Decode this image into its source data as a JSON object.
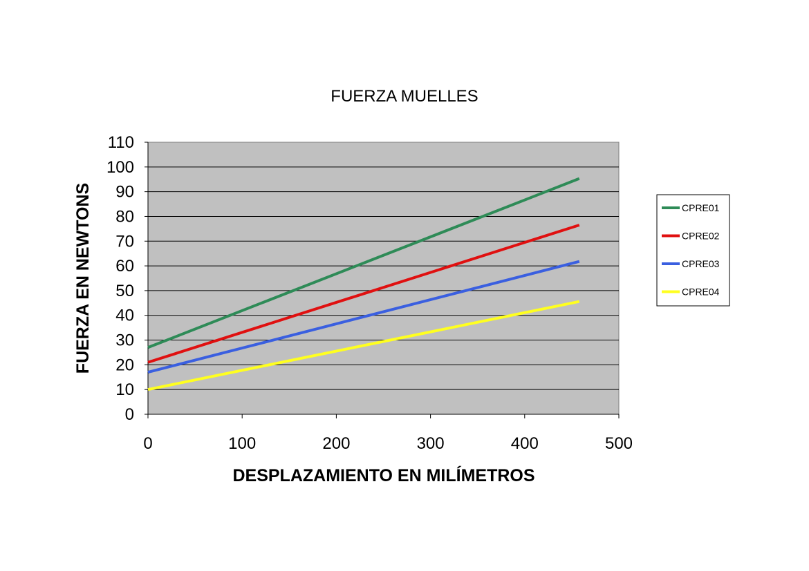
{
  "chart_data": {
    "type": "line",
    "title": "FUERZA MUELLES",
    "xlabel": "DESPLAZAMIENTO EN MILÍMETROS",
    "ylabel": "FUERZA EN NEWTONS",
    "xlim": [
      0,
      500
    ],
    "ylim": [
      0,
      110
    ],
    "xticks": [
      "0",
      "100",
      "200",
      "300",
      "400",
      "500"
    ],
    "yticks": [
      "0",
      "10",
      "20",
      "30",
      "40",
      "50",
      "60",
      "70",
      "80",
      "90",
      "100",
      "110"
    ],
    "grid": "horizontal",
    "plot_background": "#c0c0c0",
    "legend_position": "right",
    "series": [
      {
        "name": "CPRE01",
        "color": "#2e8b57",
        "x": [
          0,
          458
        ],
        "y": [
          27,
          95.3
        ]
      },
      {
        "name": "CPRE02",
        "color": "#e01010",
        "x": [
          0,
          458
        ],
        "y": [
          21,
          76.5
        ]
      },
      {
        "name": "CPRE03",
        "color": "#3a5fe0",
        "x": [
          0,
          458
        ],
        "y": [
          17,
          61.8
        ]
      },
      {
        "name": "CPRE04",
        "color": "#ffff20",
        "x": [
          0,
          458
        ],
        "y": [
          10,
          45.6
        ]
      }
    ]
  }
}
